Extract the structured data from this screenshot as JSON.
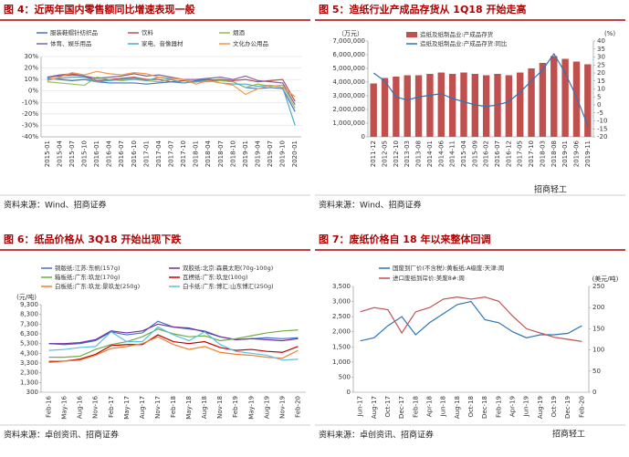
{
  "watermark": "招商轻工",
  "chart_data": [
    {
      "type": "line",
      "title": "图 4：近两年国内零售额同比增速表现一般",
      "source": "资料来源：Wind、招商证券",
      "grid": true,
      "categories": [
        "2015-01",
        "2015-04",
        "2015-07",
        "2015-10",
        "2016-01",
        "2016-04",
        "2016-07",
        "2016-10",
        "2017-01",
        "2017-04",
        "2017-07",
        "2017-10",
        "2018-01",
        "2018-04",
        "2018-07",
        "2018-10",
        "2019-01",
        "2019-04",
        "2019-07",
        "2019-10",
        "2020-01"
      ],
      "ylim": [
        -40,
        30
      ],
      "yticks": [
        {
          "value": 30,
          "label": "30%"
        },
        {
          "value": 20,
          "label": "20%"
        },
        {
          "value": 10,
          "label": "10%"
        },
        {
          "value": 0,
          "label": "0%"
        },
        {
          "value": -10,
          "label": "-10%"
        },
        {
          "value": -20,
          "label": "-20%"
        },
        {
          "value": -30,
          "label": "-30%"
        },
        {
          "value": -40,
          "label": "-40%"
        }
      ],
      "series": [
        {
          "name": "服装鞋帽针纺织品",
          "color": "#4472c4",
          "values": [
            11,
            10,
            9,
            10,
            8,
            7,
            7,
            7,
            6,
            7,
            8,
            7,
            9,
            10,
            9,
            8,
            3,
            2,
            3,
            2,
            -18
          ]
        },
        {
          "name": "饮料",
          "color": "#c0504d",
          "values": [
            12,
            13,
            14,
            13,
            9,
            10,
            11,
            12,
            10,
            10,
            8,
            9,
            8,
            9,
            10,
            9,
            10,
            8,
            9,
            10,
            -9
          ]
        },
        {
          "name": "烟酒",
          "color": "#9bbb59",
          "values": [
            8,
            7,
            6,
            5,
            12,
            10,
            9,
            10,
            9,
            8,
            10,
            7,
            8,
            8,
            9,
            8,
            3,
            6,
            4,
            5,
            -15
          ]
        },
        {
          "name": "体育、娱乐用品",
          "color": "#8064a2",
          "values": [
            12,
            14,
            15,
            13,
            11,
            12,
            13,
            15,
            13,
            14,
            12,
            10,
            10,
            11,
            12,
            10,
            13,
            9,
            8,
            7,
            -12
          ]
        },
        {
          "name": "家电、音像器材",
          "color": "#4bacc6",
          "values": [
            10,
            11,
            12,
            12,
            8,
            9,
            10,
            11,
            9,
            12,
            10,
            7,
            8,
            9,
            7,
            6,
            6,
            4,
            5,
            3,
            -30
          ]
        },
        {
          "name": "文化办公用品",
          "color": "#f79646",
          "values": [
            9,
            12,
            16,
            14,
            17,
            15,
            14,
            16,
            15,
            12,
            11,
            10,
            6,
            9,
            7,
            5,
            -3,
            2,
            5,
            3,
            -5
          ]
        }
      ]
    },
    {
      "type": "combo",
      "title": "图 5：造纸行业产成品存货从 1Q18 开始走高",
      "source": "资料来源：Wind、招商证券",
      "unit": "（万元）",
      "y2unit": "(%)",
      "categories": [
        "2011-12",
        "2012-05",
        "2012-10",
        "2013-03",
        "2013-08",
        "2014-01",
        "2014-06",
        "2014-11",
        "2015-04",
        "2015-09",
        "2016-02",
        "2016-07",
        "2016-12",
        "2017-05",
        "2017-10",
        "2018-03",
        "2018-08",
        "2019-01",
        "2019-06",
        "2019-11"
      ],
      "ylim": [
        0,
        7000000
      ],
      "yticks": [
        {
          "value": 0,
          "label": "0"
        },
        {
          "value": 1000000,
          "label": "1,000,000"
        },
        {
          "value": 2000000,
          "label": "2,000,000"
        },
        {
          "value": 3000000,
          "label": "3,000,000"
        },
        {
          "value": 4000000,
          "label": "4,000,000"
        },
        {
          "value": 5000000,
          "label": "5,000,000"
        },
        {
          "value": 6000000,
          "label": "6,000,000"
        },
        {
          "value": 7000000,
          "label": "7,000,000"
        }
      ],
      "y2lim": [
        -20,
        40
      ],
      "y2ticks": [
        -20,
        -15,
        -10,
        -5,
        0,
        5,
        10,
        15,
        20,
        25,
        30,
        35,
        40
      ],
      "series": [
        {
          "name": "造纸及纸制品业:产成品存货",
          "color": "#c0504d",
          "values": [
            3900000,
            4300000,
            4400000,
            4500000,
            4500000,
            4600000,
            4700000,
            4600000,
            4700000,
            4600000,
            4500000,
            4600000,
            4500000,
            4700000,
            5000000,
            5400000,
            5900000,
            5700000,
            5500000,
            5300000
          ]
        },
        {
          "name": "造纸及纸制品业:产成品存货:同比",
          "color": "#2e75b6",
          "axis": "y2",
          "values": [
            20,
            15,
            5,
            3,
            5,
            6,
            7,
            4,
            2,
            0,
            -1,
            0,
            2,
            8,
            15,
            22,
            32,
            20,
            5,
            -13
          ]
        }
      ]
    },
    {
      "type": "line",
      "title": "图 6：纸品价格从 3Q18 开始出现下跌",
      "source": "资料来源：卓创资讯、招商证券",
      "unit": "(元/吨)",
      "categories": [
        "Feb-16",
        "May-16",
        "Aug-16",
        "Nov-16",
        "Feb-17",
        "May-17",
        "Aug-17",
        "Nov-17",
        "Feb-18",
        "May-18",
        "Aug-18",
        "Nov-18",
        "Feb-19",
        "May-19",
        "Aug-19",
        "Nov-19",
        "Feb-20"
      ],
      "ylim": [
        300,
        9300
      ],
      "yticks": [
        {
          "value": 300,
          "label": "300"
        },
        {
          "value": 1300,
          "label": "1,300"
        },
        {
          "value": 2300,
          "label": "2,300"
        },
        {
          "value": 3300,
          "label": "3,300"
        },
        {
          "value": 4300,
          "label": "4,300"
        },
        {
          "value": 5300,
          "label": "5,300"
        },
        {
          "value": 6300,
          "label": "6,300"
        },
        {
          "value": 7300,
          "label": "7,300"
        },
        {
          "value": 8300,
          "label": "8,300"
        },
        {
          "value": 9300,
          "label": "9,300"
        }
      ],
      "series": [
        {
          "name": "铜版纸:江苏:东帆(157g)",
          "color": "#4472c4",
          "values": [
            5300,
            5200,
            5300,
            5600,
            6500,
            6200,
            6400,
            7600,
            7000,
            6800,
            6600,
            6000,
            5700,
            5800,
            5900,
            5800,
            5900
          ]
        },
        {
          "name": "双胶纸:北京:森晨太阳(70g-100g)",
          "color": "#7030a0",
          "values": [
            5300,
            5300,
            5400,
            5700,
            6600,
            6400,
            6600,
            7300,
            7000,
            6900,
            6500,
            6000,
            5700,
            5800,
            5700,
            5600,
            5800
          ]
        },
        {
          "name": "箱板纸:广东:玖龙(170g)",
          "color": "#70ad47",
          "values": [
            3900,
            3900,
            4000,
            4700,
            5200,
            5500,
            6000,
            6800,
            6300,
            6000,
            6100,
            5600,
            5800,
            6100,
            6400,
            6600,
            6700
          ]
        },
        {
          "name": "瓦楞纸:广东:玖龙(100g)",
          "color": "#c00000",
          "values": [
            3400,
            3500,
            3700,
            4200,
            5100,
            5200,
            5200,
            6200,
            5500,
            5300,
            5500,
            4900,
            4600,
            4700,
            4500,
            4400,
            5000
          ]
        },
        {
          "name": "白板纸:广东:玖龙:景玖龙(250g)",
          "color": "#ed7d31",
          "values": [
            3500,
            3500,
            3600,
            4100,
            4800,
            5000,
            5300,
            6000,
            5200,
            4700,
            5000,
            4400,
            4200,
            4100,
            3900,
            3800,
            4600
          ]
        },
        {
          "name": "白卡纸:广东:博汇:山东博汇(250g)",
          "color": "#5bc0de",
          "values": [
            4600,
            4700,
            4900,
            5000,
            6500,
            5500,
            5500,
            7000,
            6200,
            5600,
            6500,
            5200,
            4500,
            4300,
            4100,
            3600,
            3700
          ]
        }
      ]
    },
    {
      "type": "line",
      "title": "图 7：废纸价格自 18 年以来整体回调",
      "source": "资料来源：卓创资讯、招商证券",
      "y2unit": "(美元/吨)",
      "categories": [
        "Jun-17",
        "Aug-17",
        "Oct-17",
        "Dec-17",
        "Feb-18",
        "Apr-18",
        "Jun-18",
        "Aug-18",
        "Oct-18",
        "Dec-18",
        "Feb-19",
        "Apr-19",
        "Jun-19",
        "Aug-19",
        "Oct-19",
        "Dec-19",
        "Feb-20"
      ],
      "ylim": [
        0,
        3500
      ],
      "yticks": [
        {
          "value": 0,
          "label": "0"
        },
        {
          "value": 500,
          "label": "500"
        },
        {
          "value": 1000,
          "label": "1,000"
        },
        {
          "value": 1500,
          "label": "1,500"
        },
        {
          "value": 2000,
          "label": "2,000"
        },
        {
          "value": 2500,
          "label": "2,500"
        },
        {
          "value": 3000,
          "label": "3,000"
        },
        {
          "value": 3500,
          "label": "3,500"
        }
      ],
      "y2lim": [
        0,
        250
      ],
      "y2ticks": [
        0,
        50,
        100,
        150,
        200,
        250
      ],
      "series": [
        {
          "name": "国废到厂价(不含税):黄板纸:A级废:天津:周",
          "color": "#2e75b6",
          "values": [
            1700,
            1800,
            2200,
            2500,
            1900,
            2300,
            2600,
            2900,
            3000,
            2400,
            2300,
            2000,
            1800,
            1900,
            1900,
            1950,
            2200
          ]
        },
        {
          "name": "进口废纸到岸价:美废8#:周",
          "color": "#c0504d",
          "axis": "y2",
          "values": [
            190,
            200,
            195,
            140,
            190,
            200,
            220,
            225,
            220,
            225,
            215,
            180,
            150,
            140,
            130,
            125,
            120
          ]
        }
      ]
    }
  ]
}
